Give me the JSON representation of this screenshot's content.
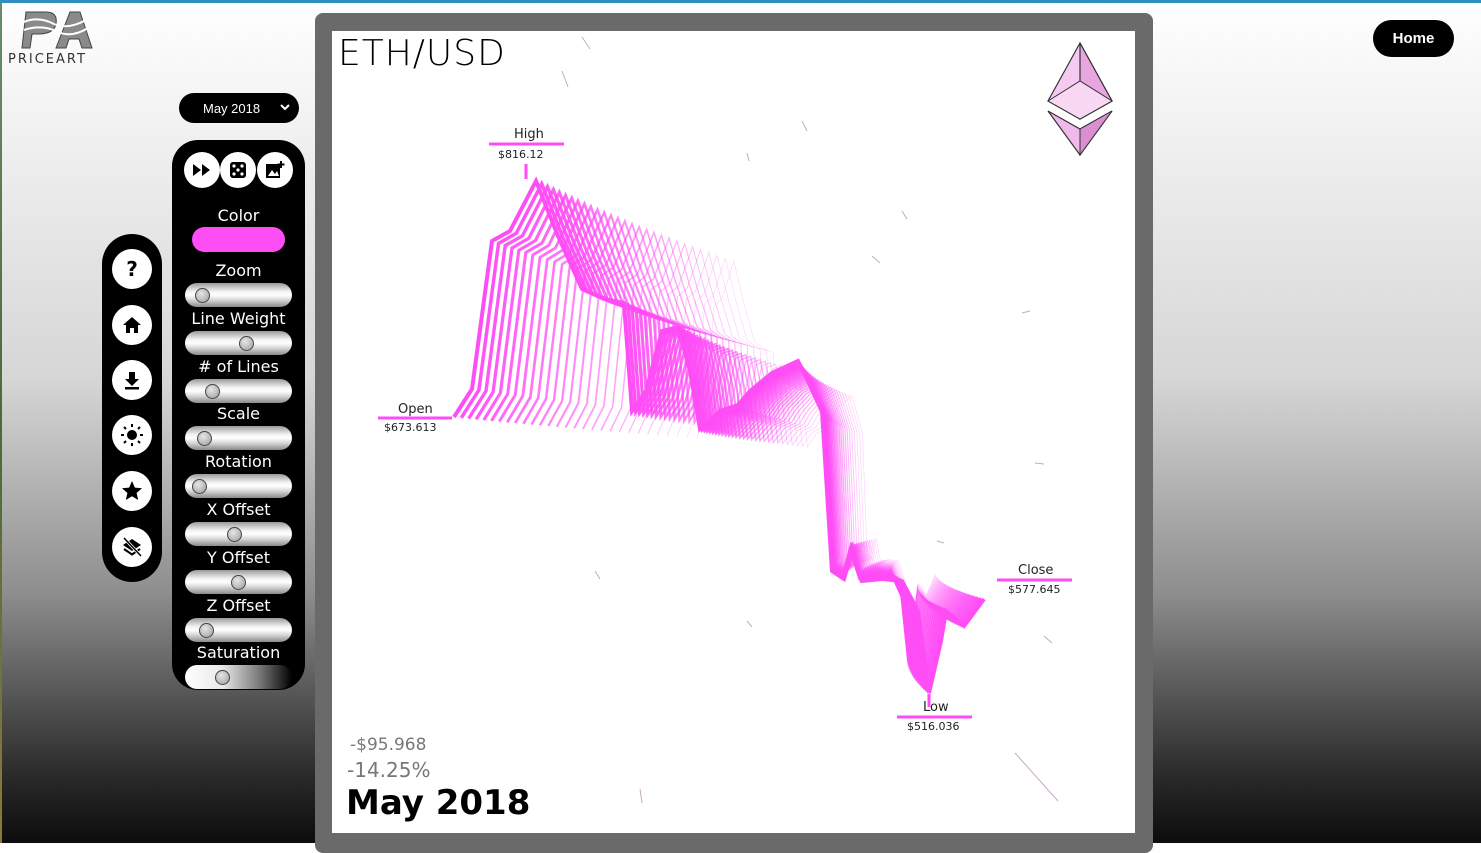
{
  "brand": {
    "logo_text": "PRICEART",
    "logo_mark": "PA"
  },
  "header": {
    "home_label": "Home"
  },
  "month_select": {
    "value": "May 2018"
  },
  "side_toolbar": [
    {
      "name": "help-icon",
      "glyph": "?"
    },
    {
      "name": "home-icon",
      "glyph": "home"
    },
    {
      "name": "download-icon",
      "glyph": "download"
    },
    {
      "name": "brightness-icon",
      "glyph": "sun"
    },
    {
      "name": "star-icon",
      "glyph": "star"
    },
    {
      "name": "layers-off-icon",
      "glyph": "layers"
    }
  ],
  "controls": {
    "top_buttons": [
      {
        "name": "fast-forward-icon"
      },
      {
        "name": "dice-icon"
      },
      {
        "name": "add-image-icon"
      }
    ],
    "color_label": "Color",
    "color_value": "#ff4df6",
    "sliders": [
      {
        "label": "Zoom",
        "value": 0.06
      },
      {
        "label": "Line Weight",
        "value": 0.6
      },
      {
        "label": "# of Lines",
        "value": 0.18
      },
      {
        "label": "Scale",
        "value": 0.08
      },
      {
        "label": "Rotation",
        "value": 0.02
      },
      {
        "label": "X Offset",
        "value": 0.45
      },
      {
        "label": "Y Offset",
        "value": 0.5
      },
      {
        "label": "Z Offset",
        "value": 0.11
      },
      {
        "label": "Saturation",
        "value": 0.3
      }
    ]
  },
  "artwork": {
    "pair": "ETH/USD",
    "open_label": "Open",
    "open_value": "$673.613",
    "high_label": "High",
    "high_value": "$816.12",
    "low_label": "Low",
    "low_value": "$516.036",
    "close_label": "Close",
    "close_value": "$577.645",
    "change_abs": "-$95.968",
    "change_pct": "-14.25%",
    "month": "May 2018",
    "line_color": "#ff4df6"
  }
}
